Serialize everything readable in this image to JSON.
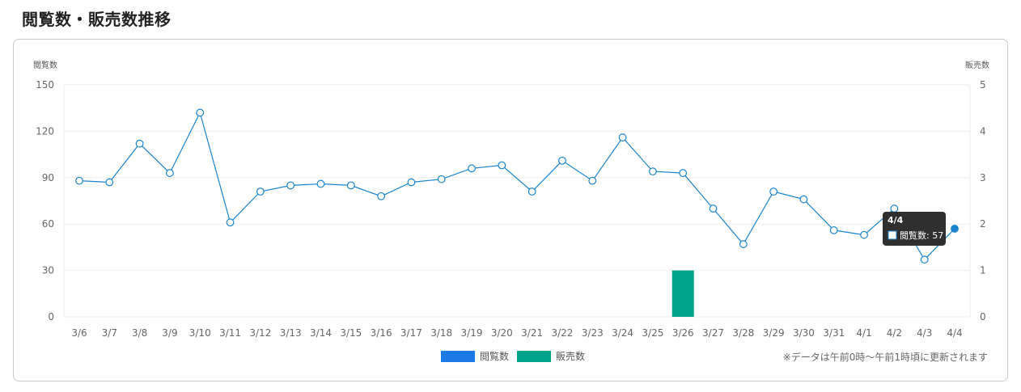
{
  "title": "閲覧数・販売数推移",
  "note": "※データは午前0時〜午前1時頃に更新されます",
  "colors": {
    "views_line": "#1a84ce",
    "views_legend": "#1b7ae6",
    "sales_bar": "#00a38a",
    "grid": "#eeeeee",
    "tooltip_bg": "#2f2f2f"
  },
  "chart_data": {
    "type": "line",
    "categories": [
      "3/6",
      "3/7",
      "3/8",
      "3/9",
      "3/10",
      "3/11",
      "3/12",
      "3/13",
      "3/14",
      "3/15",
      "3/16",
      "3/17",
      "3/18",
      "3/19",
      "3/20",
      "3/21",
      "3/22",
      "3/23",
      "3/24",
      "3/25",
      "3/26",
      "3/27",
      "3/28",
      "3/29",
      "3/30",
      "3/31",
      "4/1",
      "4/2",
      "4/3",
      "4/4"
    ],
    "series": [
      {
        "name": "閲覧数",
        "type": "line",
        "axis": "left",
        "values": [
          88,
          87,
          112,
          93,
          132,
          61,
          81,
          85,
          86,
          85,
          78,
          87,
          89,
          96,
          98,
          81,
          101,
          88,
          116,
          94,
          93,
          70,
          47,
          81,
          76,
          56,
          53,
          70,
          37,
          57
        ]
      },
      {
        "name": "販売数",
        "type": "bar",
        "axis": "right",
        "values": [
          0,
          0,
          0,
          0,
          0,
          0,
          0,
          0,
          0,
          0,
          0,
          0,
          0,
          0,
          0,
          0,
          0,
          0,
          0,
          0,
          1,
          0,
          0,
          0,
          0,
          0,
          0,
          0,
          0,
          0
        ]
      }
    ],
    "y_left": {
      "label": "閲覧数",
      "range": [
        0,
        150
      ],
      "ticks": [
        "0",
        "30",
        "60",
        "90",
        "120",
        "150"
      ]
    },
    "y_right": {
      "label": "販売数",
      "range": [
        0,
        5
      ],
      "ticks": [
        "0",
        "1",
        "2",
        "3",
        "4",
        "5"
      ]
    },
    "grid": true,
    "legend": [
      "閲覧数",
      "販売数"
    ],
    "legend_position": "bottom",
    "tooltip": {
      "title": "4/4",
      "label": "閲覧数: 57",
      "index": 29
    }
  }
}
